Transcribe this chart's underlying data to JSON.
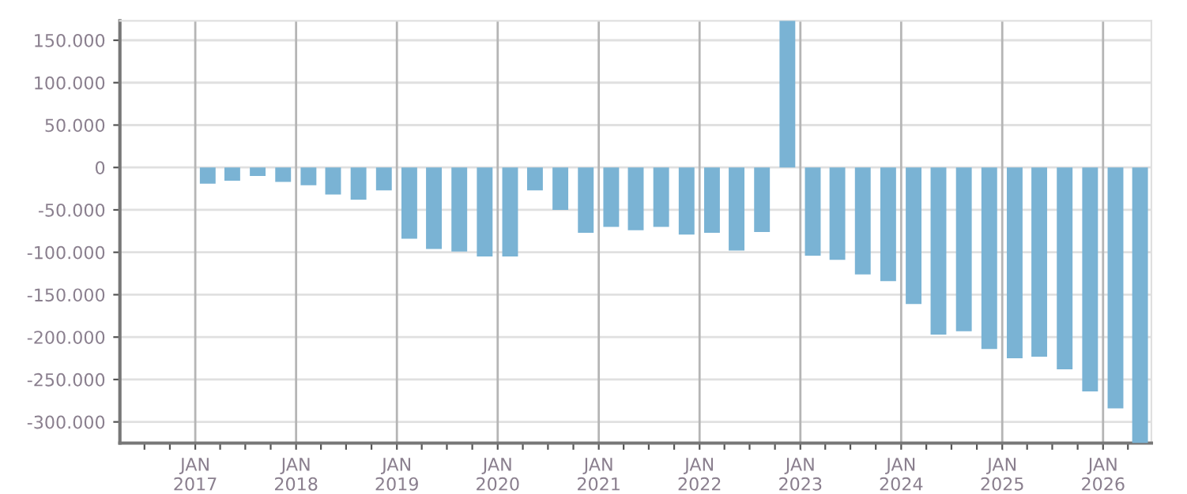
{
  "chart_data": {
    "type": "bar",
    "color": "#7ab3d4",
    "grid": true,
    "x": [
      "2017-02-15",
      "2017-05-15",
      "2017-08-15",
      "2017-11-15",
      "2018-02-15",
      "2018-05-15",
      "2018-08-15",
      "2018-11-15",
      "2019-02-15",
      "2019-05-15",
      "2019-08-15",
      "2019-11-15",
      "2020-02-15",
      "2020-05-15",
      "2020-08-15",
      "2020-11-15",
      "2021-02-15",
      "2021-05-15",
      "2021-08-15",
      "2021-11-15",
      "2022-02-15",
      "2022-05-15",
      "2022-08-15",
      "2022-11-15",
      "2023-02-15",
      "2023-05-15",
      "2023-08-15",
      "2023-11-15",
      "2024-02-15",
      "2024-05-15",
      "2024-08-15",
      "2024-11-15",
      "2025-02-15",
      "2025-05-15",
      "2025-08-15",
      "2025-11-15",
      "2026-02-15",
      "2026-05-15"
    ],
    "values": [
      -19000,
      -15500,
      -10000,
      -17000,
      -21000,
      -32000,
      -38000,
      -27000,
      -84000,
      -96000,
      -99000,
      -105000,
      -105000,
      -27000,
      -50000,
      -77000,
      -70000,
      -74000,
      -70000,
      -79000,
      -77000,
      -98000,
      -76000,
      173000,
      -104000,
      -109000,
      -126000,
      -134000,
      -161000,
      -197000,
      -193000,
      -214000,
      -225000,
      -223000,
      -238000,
      -264000,
      -284000,
      -325000
    ],
    "xlim": [
      "2016-04-03",
      "2026-06-25"
    ],
    "ylim": [
      -325000,
      173000
    ],
    "yticks": [
      {
        "value": -300000,
        "label": "-300.000"
      },
      {
        "value": -250000,
        "label": "-250.000"
      },
      {
        "value": -200000,
        "label": "-200.000"
      },
      {
        "value": -150000,
        "label": "-150.000"
      },
      {
        "value": -100000,
        "label": "-100.000"
      },
      {
        "value": -50000,
        "label": "-50.000"
      },
      0,
      {
        "value": 50000,
        "label": "50.000"
      },
      {
        "value": 100000,
        "label": "100.000"
      },
      {
        "value": 150000,
        "label": "150.000"
      }
    ],
    "xticks": [
      {
        "value": "2016-07-01",
        "label": null
      },
      {
        "value": "2016-10-01",
        "label": null
      },
      {
        "value": "2017-01-01",
        "label": "JAN\n2017"
      },
      {
        "value": "2017-04-01",
        "label": null
      },
      {
        "value": "2017-07-01",
        "label": null
      },
      {
        "value": "2017-10-01",
        "label": null
      },
      {
        "value": "2018-01-01",
        "label": "JAN\n2018"
      },
      {
        "value": "2018-04-01",
        "label": null
      },
      {
        "value": "2018-07-01",
        "label": null
      },
      {
        "value": "2018-10-01",
        "label": null
      },
      {
        "value": "2019-01-01",
        "label": "JAN\n2019"
      },
      {
        "value": "2019-04-01",
        "label": null
      },
      {
        "value": "2019-07-01",
        "label": null
      },
      {
        "value": "2019-10-01",
        "label": null
      },
      {
        "value": "2020-01-01",
        "label": "JAN\n2020"
      },
      {
        "value": "2020-04-01",
        "label": null
      },
      {
        "value": "2020-07-01",
        "label": null
      },
      {
        "value": "2020-10-01",
        "label": null
      },
      {
        "value": "2021-01-01",
        "label": "JAN\n2021"
      },
      {
        "value": "2021-04-01",
        "label": null
      },
      {
        "value": "2021-07-01",
        "label": null
      },
      {
        "value": "2021-10-01",
        "label": null
      },
      {
        "value": "2022-01-01",
        "label": "JAN\n2022"
      },
      {
        "value": "2022-04-01",
        "label": null
      },
      {
        "value": "2022-07-01",
        "label": null
      },
      {
        "value": "2022-10-01",
        "label": null
      },
      {
        "value": "2023-01-01",
        "label": "JAN\n2023"
      },
      {
        "value": "2023-04-01",
        "label": null
      },
      {
        "value": "2023-07-01",
        "label": null
      },
      {
        "value": "2023-10-01",
        "label": null
      },
      {
        "value": "2024-01-01",
        "label": "JAN\n2024"
      },
      {
        "value": "2024-04-01",
        "label": null
      },
      {
        "value": "2024-07-01",
        "label": null
      },
      {
        "value": "2024-10-01",
        "label": null
      },
      {
        "value": "2025-01-01",
        "label": "JAN\n2025"
      },
      {
        "value": "2025-04-01",
        "label": null
      },
      {
        "value": "2025-07-01",
        "label": null
      },
      {
        "value": "2025-10-01",
        "label": null
      },
      {
        "value": "2026-01-01",
        "label": "JAN\n2026"
      },
      {
        "value": "2026-04-01",
        "label": null
      }
    ]
  }
}
